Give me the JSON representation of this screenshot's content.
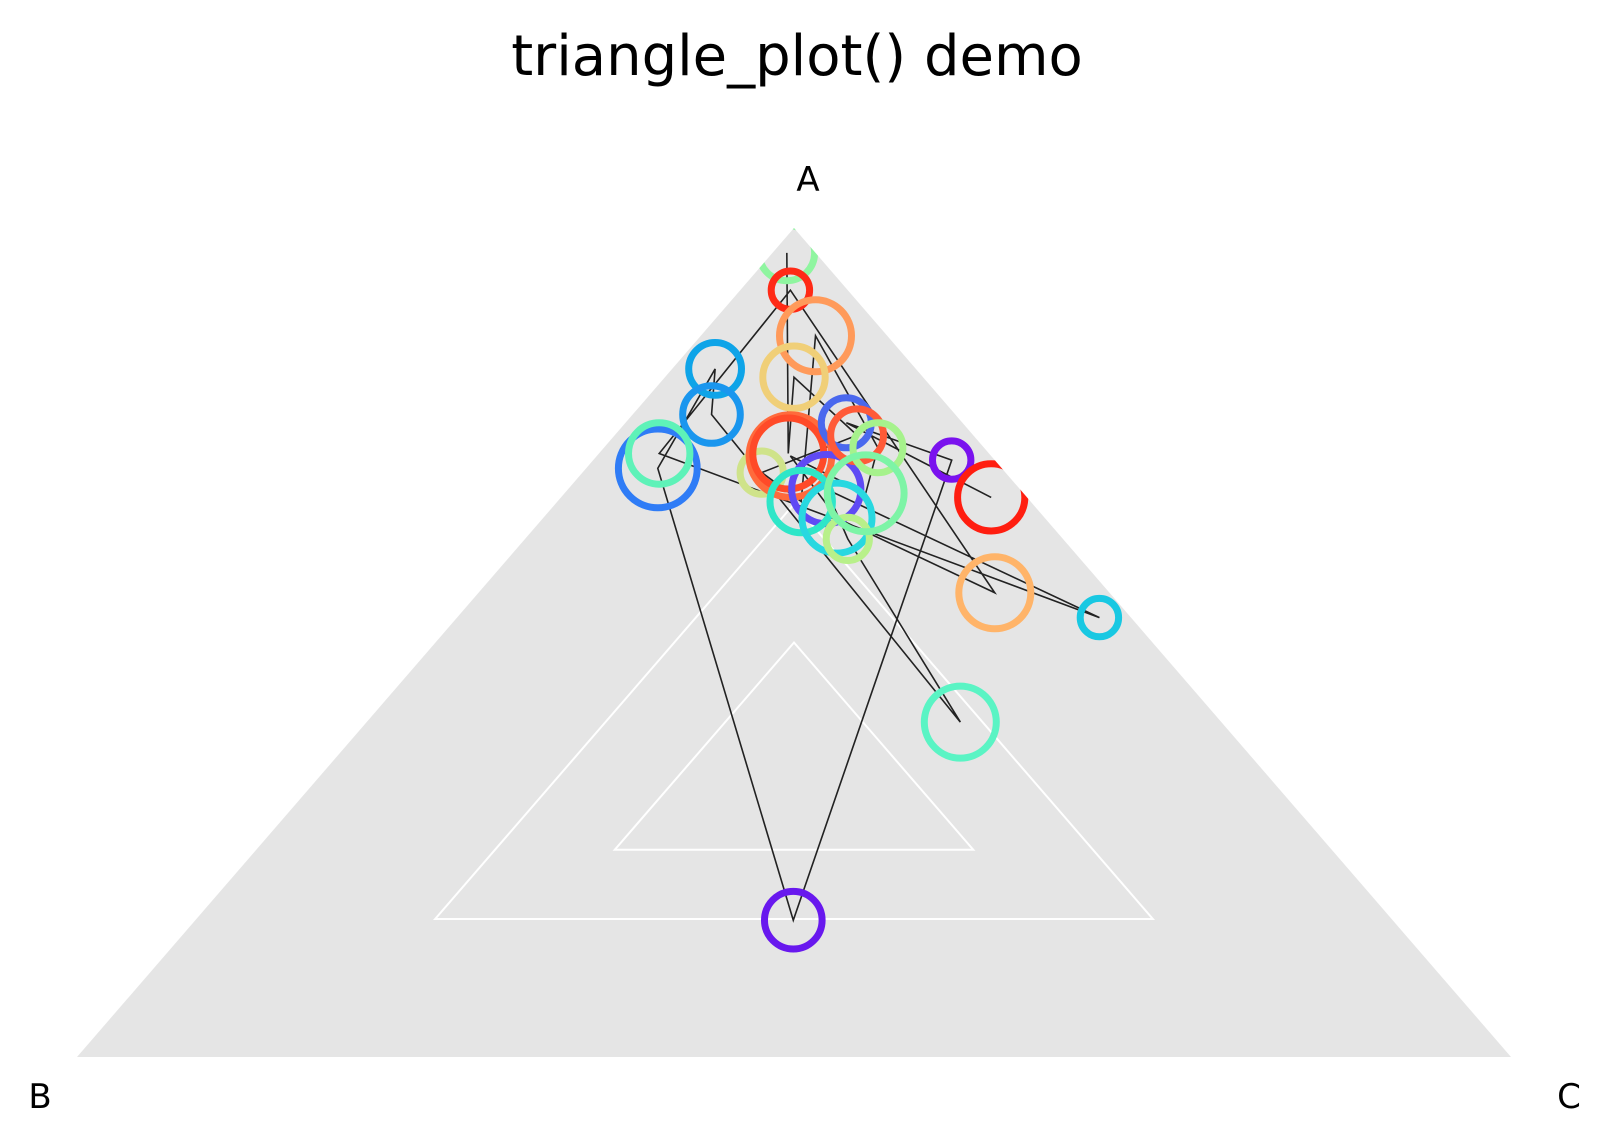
{
  "chart_data": {
    "type": "scatter",
    "subtype": "ternary",
    "title": "triangle_plot() demo",
    "vertex_labels": {
      "top": "A",
      "left": "B",
      "right": "C"
    },
    "background_color": "#e5e5e5",
    "grid_color": "#ffffff",
    "line_color": "#222222",
    "grid_levels": [
      0.333,
      0.5
    ],
    "points": [
      {
        "a": 0.97,
        "b": 0.02,
        "c": 0.01,
        "size": 0.58,
        "color": "#8ff5a0"
      },
      {
        "a": 0.925,
        "b": 0.04,
        "c": 0.035,
        "size": 0.4,
        "color": "#ff2a16"
      },
      {
        "a": 0.87,
        "b": 0.05,
        "c": 0.08,
        "size": 0.75,
        "color": "#ff9a5a"
      },
      {
        "a": 0.82,
        "b": 0.09,
        "c": 0.09,
        "size": 0.65,
        "color": "#f0cf78"
      },
      {
        "a": 0.83,
        "b": 0.14,
        "c": 0.03,
        "size": 0.55,
        "color": "#0ea4e8"
      },
      {
        "a": 0.775,
        "b": 0.17,
        "c": 0.055,
        "size": 0.6,
        "color": "#1a96ee"
      },
      {
        "a": 0.71,
        "b": 0.24,
        "c": 0.05,
        "size": 0.82,
        "color": "#2f7cf6"
      },
      {
        "a": 0.728,
        "b": 0.23,
        "c": 0.042,
        "size": 0.64,
        "color": "#5ef2b8"
      },
      {
        "a": 0.705,
        "b": 0.17,
        "c": 0.125,
        "size": 0.45,
        "color": "#cfe38a"
      },
      {
        "a": 0.725,
        "b": 0.14,
        "c": 0.135,
        "size": 0.86,
        "color": "#ff6a3c"
      },
      {
        "a": 0.728,
        "b": 0.14,
        "c": 0.132,
        "size": 0.74,
        "color": "#ff4a28"
      },
      {
        "a": 0.685,
        "b": 0.135,
        "c": 0.18,
        "size": 0.72,
        "color": "#5f4af4"
      },
      {
        "a": 0.67,
        "b": 0.16,
        "c": 0.17,
        "size": 0.65,
        "color": "#2ee6c8"
      },
      {
        "a": 0.65,
        "b": 0.145,
        "c": 0.205,
        "size": 0.73,
        "color": "#28d8e0"
      },
      {
        "a": 0.625,
        "b": 0.15,
        "c": 0.225,
        "size": 0.45,
        "color": "#b8f08a"
      },
      {
        "a": 0.765,
        "b": 0.081,
        "c": 0.154,
        "size": 0.52,
        "color": "#4a68ee"
      },
      {
        "a": 0.75,
        "b": 0.081,
        "c": 0.169,
        "size": 0.55,
        "color": "#ff5a38"
      },
      {
        "a": 0.735,
        "b": 0.074,
        "c": 0.191,
        "size": 0.52,
        "color": "#a6f28c"
      },
      {
        "a": 0.68,
        "b": 0.11,
        "c": 0.21,
        "size": 0.8,
        "color": "#7df4a6"
      },
      {
        "a": 0.72,
        "b": 0.03,
        "c": 0.25,
        "size": 0.4,
        "color": "#7a12ee"
      },
      {
        "a": 0.675,
        "b": 0.025,
        "c": 0.3,
        "size": 0.7,
        "color": "#ff1e10"
      },
      {
        "a": 0.56,
        "b": 0.08,
        "c": 0.36,
        "size": 0.75,
        "color": "#ffb469"
      },
      {
        "a": 0.53,
        "b": 0.022,
        "c": 0.448,
        "size": 0.4,
        "color": "#18c8e2"
      },
      {
        "a": 0.404,
        "b": 0.182,
        "c": 0.414,
        "size": 0.75,
        "color": "#5af4c4"
      },
      {
        "a": 0.165,
        "b": 0.418,
        "c": 0.417,
        "size": 0.6,
        "color": "#6818ee"
      }
    ],
    "path_order": [
      0,
      10,
      3,
      16,
      8,
      12,
      2,
      17,
      18,
      9,
      13,
      21,
      1,
      7,
      22,
      11,
      14,
      23,
      5,
      4,
      6,
      24,
      19,
      15,
      20
    ]
  }
}
